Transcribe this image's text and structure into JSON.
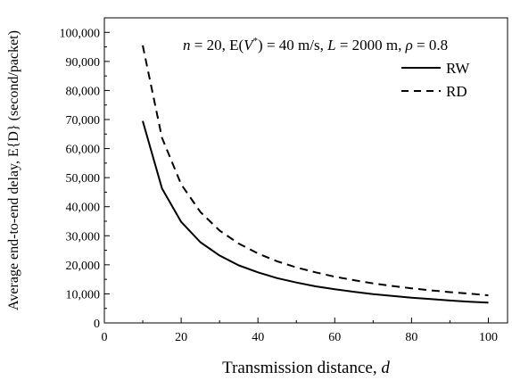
{
  "chart_data": {
    "type": "line",
    "xlabel": {
      "text": "Transmission distance, ",
      "var": "d"
    },
    "ylabel": "Average end-to-end delay, E{D} (second/packet)",
    "annotation": {
      "n_var": "n",
      "n_text": " = 20, E(",
      "v_var": "V",
      "v_sup": "*",
      "v_text": ") = 40 m/s, ",
      "l_var": "L",
      "l_text": " = 2000 m, ",
      "rho_var": "ρ",
      "rho_text": " = 0.8"
    },
    "xlim": [
      0,
      105
    ],
    "ylim": [
      0,
      105000
    ],
    "xticks": [
      0,
      20,
      40,
      60,
      80,
      100
    ],
    "xtick_labels": [
      "0",
      "20",
      "40",
      "60",
      "80",
      "100"
    ],
    "yticks": [
      0,
      10000,
      20000,
      30000,
      40000,
      50000,
      60000,
      70000,
      80000,
      90000,
      100000
    ],
    "ytick_labels": [
      "0",
      "10,000",
      "20,000",
      "30,000",
      "40,000",
      "50,000",
      "60,000",
      "70,000",
      "80,000",
      "90,000",
      "100,000"
    ],
    "grid": false,
    "legend_position": "top-right",
    "series": [
      {
        "name": "RW",
        "style": "solid",
        "color": "#000000",
        "x": [
          10,
          15,
          20,
          25,
          30,
          35,
          40,
          45,
          50,
          55,
          60,
          65,
          70,
          75,
          80,
          85,
          90,
          95,
          100
        ],
        "y": [
          69500,
          46300,
          34800,
          27800,
          23200,
          19800,
          17400,
          15400,
          13900,
          12600,
          11600,
          10700,
          9900,
          9300,
          8700,
          8200,
          7700,
          7300,
          7000
        ]
      },
      {
        "name": "RD",
        "style": "dashed",
        "color": "#000000",
        "x": [
          10,
          15,
          20,
          25,
          30,
          35,
          40,
          45,
          50,
          55,
          60,
          65,
          70,
          75,
          80,
          85,
          90,
          95,
          100
        ],
        "y": [
          95500,
          63700,
          47700,
          38200,
          31800,
          27300,
          23900,
          21200,
          19100,
          17400,
          15900,
          14700,
          13600,
          12700,
          11900,
          11200,
          10600,
          10100,
          9500
        ]
      }
    ]
  }
}
